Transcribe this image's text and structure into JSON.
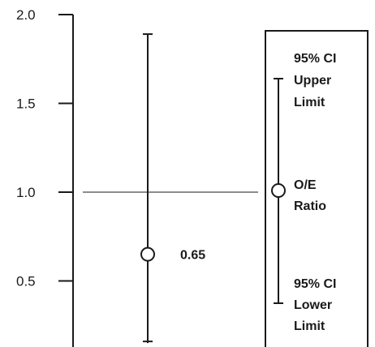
{
  "chart_data": {
    "type": "errorbar",
    "ylim": [
      0.15,
      2.0
    ],
    "y_ticks": [
      {
        "value": 2.0,
        "label": "2.0"
      },
      {
        "value": 1.5,
        "label": "1.5"
      },
      {
        "value": 1.0,
        "label": "1.0"
      },
      {
        "value": 0.5,
        "label": "0.5"
      }
    ],
    "reference_line": 1.0,
    "point": {
      "estimate": 0.65,
      "upper": 1.89,
      "lower": 0.15,
      "label": "0.65"
    },
    "legend": {
      "upper_label": [
        "95% CI",
        "Upper",
        "Limit"
      ],
      "middle_label": [
        "O/E",
        "Ratio"
      ],
      "lower_label": [
        "95% CI",
        "Lower",
        "Limit"
      ]
    },
    "colors": {
      "ink": "#1a1a1a",
      "background": "#ffffff"
    }
  }
}
